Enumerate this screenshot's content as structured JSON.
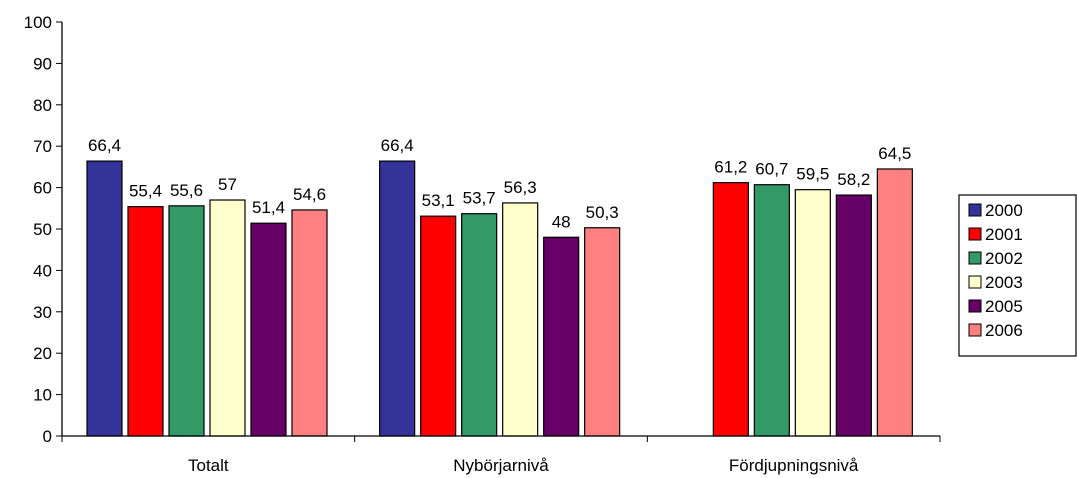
{
  "chart_data": {
    "type": "bar",
    "categories": [
      "Totalt",
      "Nybörjarnivå",
      "Fördjupningsnivå"
    ],
    "series": [
      {
        "name": "2000",
        "color": "#333399",
        "values": [
          66.4,
          66.4,
          null
        ],
        "labels": [
          "66,4",
          "66,4",
          ""
        ]
      },
      {
        "name": "2001",
        "color": "#FF0000",
        "values": [
          55.4,
          53.1,
          61.2
        ],
        "labels": [
          "55,4",
          "53,1",
          "61,2"
        ]
      },
      {
        "name": "2002",
        "color": "#339966",
        "values": [
          55.6,
          53.7,
          60.7
        ],
        "labels": [
          "55,6",
          "53,7",
          "60,7"
        ]
      },
      {
        "name": "2003",
        "color": "#FFFFCC",
        "values": [
          57,
          56.3,
          59.5
        ],
        "labels": [
          "57",
          "56,3",
          "59,5"
        ]
      },
      {
        "name": "2005",
        "color": "#660066",
        "values": [
          51.4,
          48,
          58.2
        ],
        "labels": [
          "51,4",
          "48",
          "58,2"
        ]
      },
      {
        "name": "2006",
        "color": "#FF8080",
        "values": [
          54.6,
          50.3,
          64.5
        ],
        "labels": [
          "54,6",
          "50,3",
          "64,5"
        ]
      }
    ],
    "yticks": [
      "0",
      "10",
      "20",
      "30",
      "40",
      "50",
      "60",
      "70",
      "80",
      "90",
      "100"
    ],
    "ylim": [
      0,
      100
    ],
    "grid": false,
    "legend": "right"
  }
}
